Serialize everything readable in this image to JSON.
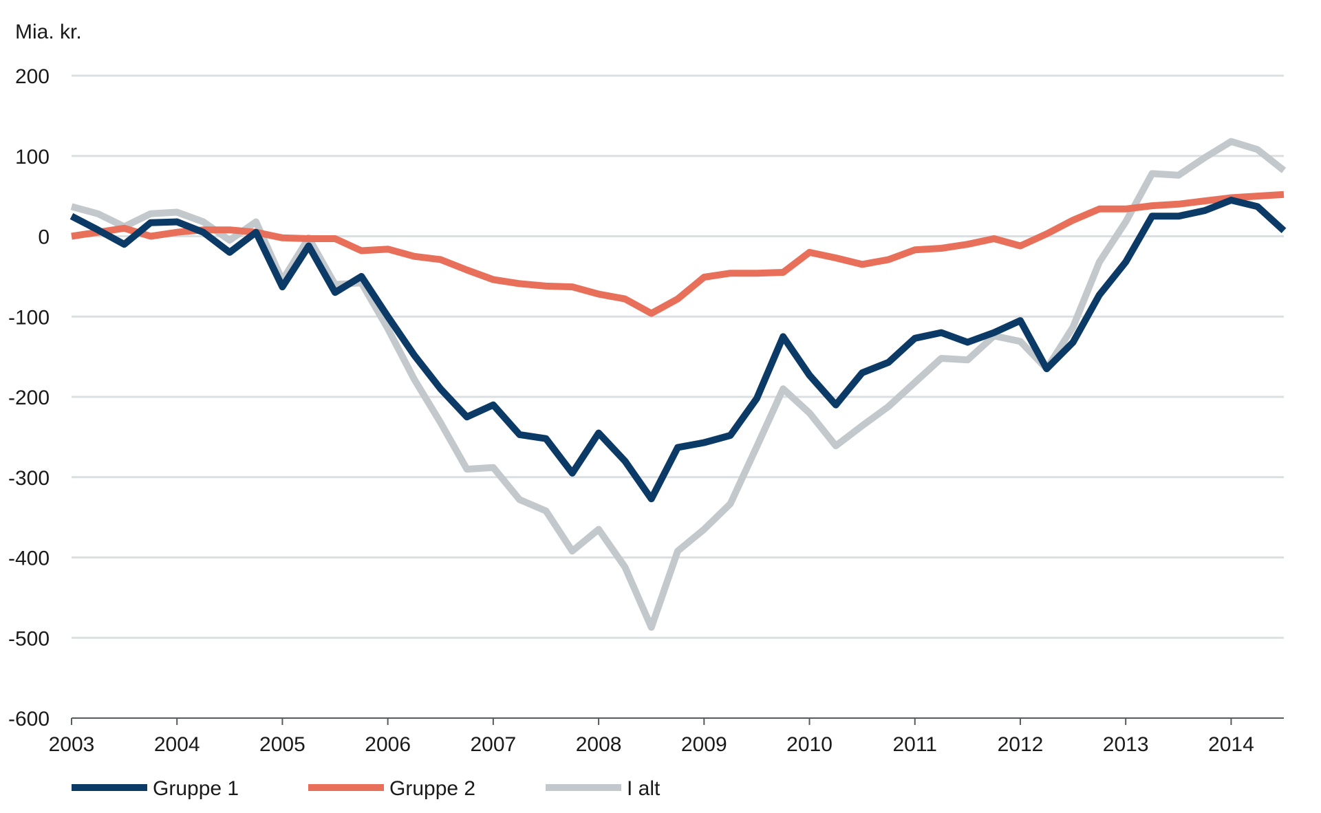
{
  "chart_data": {
    "type": "line",
    "title": "",
    "xlabel": "",
    "ylabel": "Mia. kr.",
    "xlim": [
      2003.0,
      2014.5
    ],
    "ylim": [
      -600,
      200
    ],
    "x_ticks": [
      "2003",
      "2004",
      "2005",
      "2006",
      "2007",
      "2008",
      "2009",
      "2010",
      "2011",
      "2012",
      "2013",
      "2014"
    ],
    "y_ticks": [
      "200",
      "100",
      "0",
      "-100",
      "-200",
      "-300",
      "-400",
      "-500",
      "-600"
    ],
    "y_tick_values": [
      200,
      100,
      0,
      -100,
      -200,
      -300,
      -400,
      -500,
      -600
    ],
    "grid": "horizontal",
    "legend_position": "bottom-left",
    "x": [
      2003.0,
      2003.25,
      2003.5,
      2003.75,
      2004.0,
      2004.25,
      2004.5,
      2004.75,
      2005.0,
      2005.25,
      2005.5,
      2005.75,
      2006.0,
      2006.25,
      2006.5,
      2006.75,
      2007.0,
      2007.25,
      2007.5,
      2007.75,
      2008.0,
      2008.25,
      2008.5,
      2008.75,
      2009.0,
      2009.25,
      2009.5,
      2009.75,
      2010.0,
      2010.25,
      2010.5,
      2010.75,
      2011.0,
      2011.25,
      2011.5,
      2011.75,
      2012.0,
      2012.25,
      2012.5,
      2012.75,
      2013.0,
      2013.25,
      2013.5,
      2013.75,
      2014.0,
      2014.25,
      2014.5
    ],
    "series": [
      {
        "name": "Gruppe 1",
        "color": "#0b3a66",
        "values": [
          25,
          8,
          -10,
          17,
          18,
          5,
          -20,
          5,
          -63,
          -12,
          -70,
          -50,
          -100,
          -148,
          -190,
          -225,
          -210,
          -247,
          -252,
          -295,
          -245,
          -280,
          -327,
          -263,
          -257,
          -248,
          -202,
          -125,
          -173,
          -210,
          -170,
          -157,
          -127,
          -120,
          -132,
          -120,
          -105,
          -165,
          -132,
          -73,
          -32,
          25,
          25,
          32,
          45,
          37,
          7
        ]
      },
      {
        "name": "Gruppe 2",
        "color": "#e8705a",
        "values": [
          0,
          5,
          10,
          0,
          5,
          8,
          8,
          5,
          -2,
          -3,
          -3,
          -18,
          -16,
          -25,
          -29,
          -42,
          -54,
          -59,
          -62,
          -63,
          -72,
          -78,
          -96,
          -78,
          -51,
          -46,
          -46,
          -45,
          -20,
          -27,
          -35,
          -29,
          -17,
          -15,
          -10,
          -3,
          -12,
          3,
          20,
          34,
          34,
          38,
          40,
          44,
          48,
          50,
          52
        ]
      },
      {
        "name": "I alt",
        "color": "#c2c8cb",
        "values": [
          37,
          28,
          12,
          28,
          30,
          18,
          -5,
          18,
          -55,
          -2,
          -60,
          -58,
          -115,
          -178,
          -232,
          -290,
          -288,
          -328,
          -342,
          -392,
          -365,
          -412,
          -487,
          -392,
          -365,
          -333,
          -262,
          -190,
          -220,
          -261,
          -236,
          -212,
          -182,
          -152,
          -154,
          -124,
          -131,
          -165,
          -113,
          -32,
          18,
          78,
          76,
          98,
          118,
          108,
          82
        ]
      }
    ]
  }
}
